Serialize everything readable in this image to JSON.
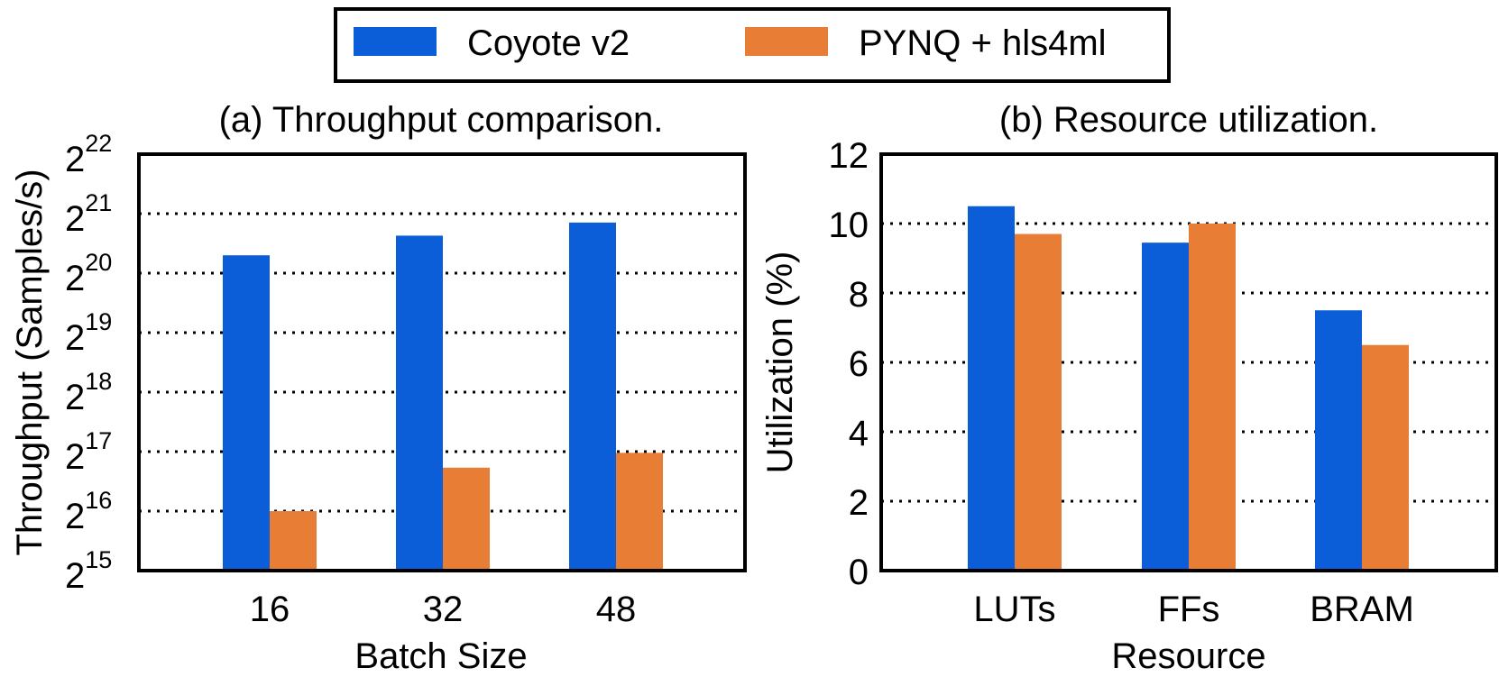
{
  "legend": {
    "items": [
      {
        "label": "Coyote v2",
        "color": "#0b5ed7"
      },
      {
        "label": "PYNQ + hls4ml",
        "color": "#e87d35"
      }
    ]
  },
  "chart_data": [
    {
      "type": "bar",
      "title": "(a) Throughput comparison.",
      "xlabel": "Batch Size",
      "ylabel": "Throughput (Samples/s)",
      "yscale": "log2",
      "ylim_exponents": [
        15,
        22
      ],
      "ytick_exponents": [
        "15",
        "16",
        "17",
        "18",
        "19",
        "20",
        "21",
        "22"
      ],
      "grid": "horizontal dotted",
      "categories": [
        "16",
        "32",
        "48"
      ],
      "series": [
        {
          "name": "Coyote v2",
          "color": "#0b5ed7",
          "values_log2": [
            20.3,
            20.63,
            20.85
          ]
        },
        {
          "name": "PYNQ + hls4ml",
          "color": "#e87d35",
          "values_log2": [
            16.0,
            16.73,
            16.98
          ]
        }
      ]
    },
    {
      "type": "bar",
      "title": "(b) Resource utilization.",
      "xlabel": "Resource",
      "ylabel": "Utilization (%)",
      "ylim": [
        0,
        12
      ],
      "yticks": [
        "0",
        "2",
        "4",
        "6",
        "8",
        "10",
        "12"
      ],
      "grid": "horizontal dotted",
      "categories": [
        "LUTs",
        "FFs",
        "BRAM"
      ],
      "series": [
        {
          "name": "Coyote v2",
          "color": "#0b5ed7",
          "values": [
            10.5,
            9.45,
            7.5
          ]
        },
        {
          "name": "PYNQ + hls4ml",
          "color": "#e87d35",
          "values": [
            9.7,
            10.0,
            6.5
          ]
        }
      ]
    }
  ]
}
